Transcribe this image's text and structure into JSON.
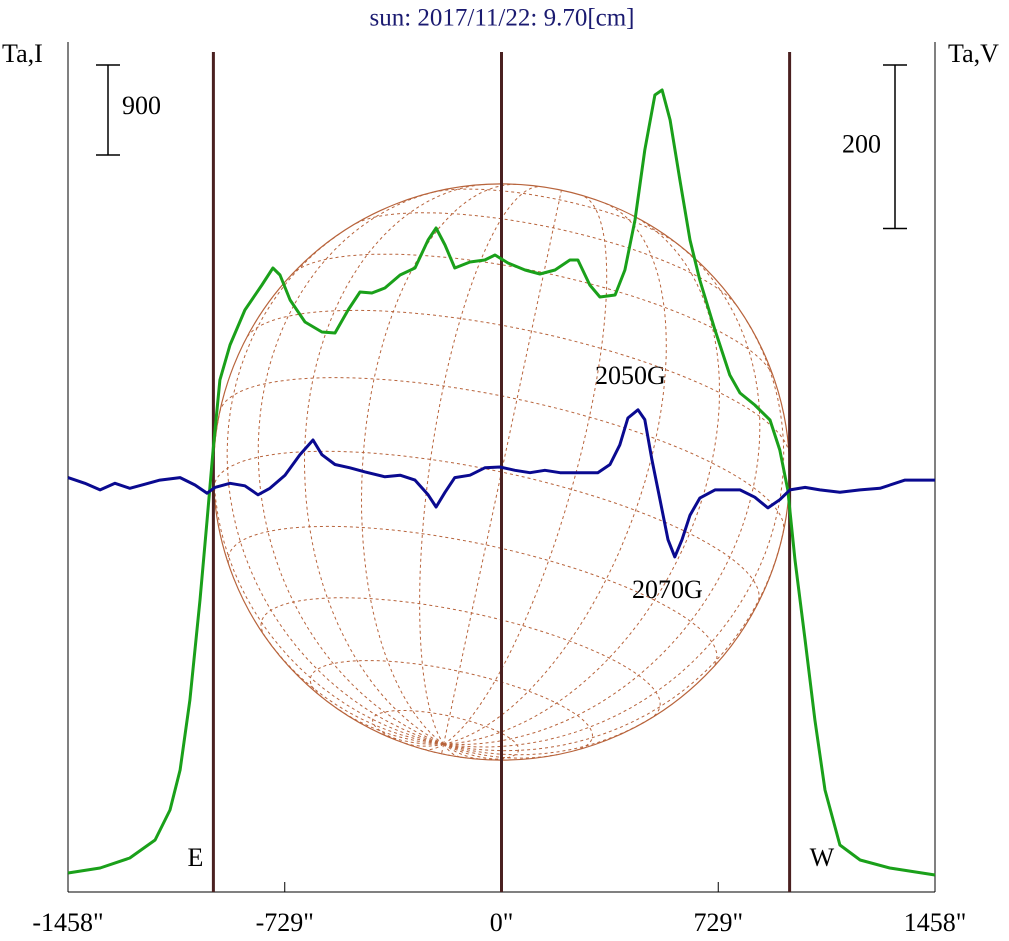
{
  "chart_data": {
    "type": "line",
    "title": "sun: 2017/11/22: 9.70[cm]",
    "y_label": "Ta,I",
    "y2_label": "Ta,V",
    "xlim": [
      -1458,
      1458
    ],
    "xticks": [
      {
        "value": -1458,
        "label": "-1458\""
      },
      {
        "value": -729,
        "label": "-729\""
      },
      {
        "value": 0,
        "label": "0\""
      },
      {
        "value": 729,
        "label": "729\""
      },
      {
        "value": 1458,
        "label": "1458\""
      }
    ],
    "ylim": [
      -200,
      8300
    ],
    "y2lim": [
      -500,
      540
    ],
    "scale_bars": [
      {
        "value": 900,
        "axis": "y"
      },
      {
        "value": 200,
        "axis": "y2"
      }
    ],
    "limb_radius": 969,
    "markers": [
      {
        "x": -969,
        "label": "E"
      },
      {
        "x": 0
      },
      {
        "x": 969,
        "label": "W"
      }
    ],
    "annotations": [
      "2050G",
      "2070G"
    ],
    "series": [
      {
        "name": "I",
        "color": "#1aa01a",
        "x": [
          -1458,
          -1350,
          -1250,
          -1165,
          -1115,
          -1081,
          -1048,
          -1014,
          -990,
          -970,
          -947,
          -913,
          -863,
          -806,
          -769,
          -745,
          -711,
          -661,
          -604,
          -560,
          -516,
          -476,
          -436,
          -392,
          -341,
          -291,
          -247,
          -220,
          -190,
          -157,
          -106,
          -56,
          -22,
          22,
          79,
          129,
          180,
          230,
          257,
          297,
          331,
          382,
          415,
          449,
          482,
          516,
          540,
          567,
          600,
          634,
          667,
          718,
          768,
          802,
          852,
          903,
          936,
          963,
          987,
          1021,
          1054,
          1088,
          1138,
          1206,
          1306,
          1458
        ],
        "values": [
          -10,
          40,
          140,
          320,
          620,
          1020,
          1720,
          2720,
          3520,
          4220,
          4920,
          5270,
          5620,
          5870,
          6040,
          5970,
          5720,
          5500,
          5400,
          5390,
          5620,
          5800,
          5790,
          5840,
          5970,
          6040,
          6320,
          6440,
          6270,
          6040,
          6100,
          6120,
          6170,
          6090,
          6020,
          5980,
          6020,
          6120,
          6120,
          5870,
          5750,
          5770,
          6020,
          6520,
          7220,
          7770,
          7820,
          7520,
          6920,
          6320,
          5920,
          5420,
          4970,
          4790,
          4670,
          4520,
          4220,
          3820,
          3120,
          2320,
          1520,
          820,
          270,
          120,
          40,
          -30
        ]
      },
      {
        "name": "V",
        "color": "#0a0a90",
        "axis": "y2",
        "x": [
          -1458,
          -1401,
          -1350,
          -1300,
          -1250,
          -1199,
          -1149,
          -1081,
          -1031,
          -990,
          -964,
          -913,
          -863,
          -819,
          -779,
          -728,
          -678,
          -634,
          -604,
          -560,
          -510,
          -459,
          -392,
          -341,
          -291,
          -247,
          -220,
          -190,
          -157,
          -106,
          -56,
          -5,
          45,
          96,
          146,
          197,
          264,
          324,
          365,
          398,
          425,
          459,
          482,
          506,
          533,
          560,
          583,
          607,
          634,
          667,
          718,
          802,
          852,
          896,
          936,
          970,
          1021,
          1071,
          1138,
          1206,
          1273,
          1357,
          1458
        ],
        "values": [
          7,
          0,
          -8,
          0,
          -6,
          -1,
          4,
          7,
          -2,
          -12,
          -5,
          0,
          -3,
          -14,
          -6,
          10,
          35,
          53,
          35,
          23,
          19,
          14,
          8,
          10,
          4,
          -14,
          -29,
          -11,
          7,
          10,
          19,
          20,
          16,
          13,
          16,
          13,
          13,
          13,
          23,
          47,
          80,
          90,
          78,
          29,
          -20,
          -69,
          -90,
          -69,
          -39,
          -18,
          -8,
          -8,
          -17,
          -30,
          -20,
          -8,
          -5,
          -8,
          -11,
          -8,
          -6,
          4,
          4
        ]
      }
    ]
  }
}
